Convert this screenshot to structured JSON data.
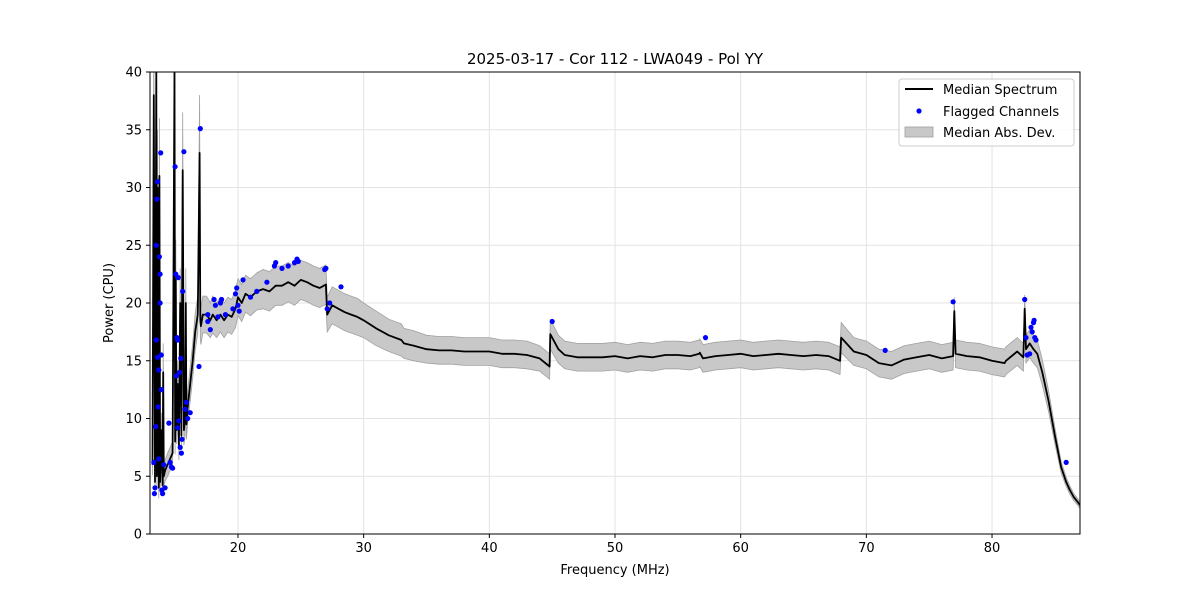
{
  "chart_data": {
    "type": "line",
    "title": "2025-03-17 - Cor 112 - LWA049 - Pol YY",
    "xlabel": "Frequency (MHz)",
    "ylabel": "Power (CPU)",
    "xlim": [
      13,
      87
    ],
    "ylim": [
      0,
      40
    ],
    "xticks": [
      20,
      30,
      40,
      50,
      60,
      70,
      80
    ],
    "yticks": [
      0,
      5,
      10,
      15,
      20,
      25,
      30,
      35,
      40
    ],
    "grid": true,
    "legend_position": "top-right",
    "colors": {
      "median": "#000000",
      "flagged": "#0000ff",
      "mad": "#c8c8c8",
      "mad_edge": "#a0a0a0"
    },
    "legend": [
      {
        "label": "Median Spectrum",
        "kind": "line"
      },
      {
        "label": "Flagged Channels",
        "kind": "point"
      },
      {
        "label": "Median Abs. Dev.",
        "kind": "band"
      }
    ],
    "series": [
      {
        "name": "Median Spectrum",
        "x": [
          13.2,
          13.3,
          13.4,
          13.5,
          13.55,
          13.6,
          13.7,
          13.75,
          13.8,
          13.9,
          14.0,
          14.05,
          14.1,
          14.2,
          14.4,
          14.6,
          14.8,
          14.95,
          15.0,
          15.05,
          15.1,
          15.2,
          15.3,
          15.4,
          15.5,
          15.6,
          15.7,
          15.8,
          15.85,
          15.9,
          16.0,
          16.2,
          16.4,
          16.6,
          16.8,
          16.95,
          17.0,
          17.05,
          17.2,
          17.5,
          17.8,
          18.0,
          18.3,
          18.6,
          18.9,
          19.2,
          19.5,
          19.8,
          20.0,
          20.3,
          20.6,
          21.0,
          21.5,
          22.0,
          22.5,
          23.0,
          23.5,
          24.0,
          24.5,
          25.0,
          25.5,
          26.0,
          26.5,
          27.0,
          27.1,
          27.5,
          28.0,
          28.5,
          29.0,
          29.5,
          30.0,
          31.0,
          32.0,
          33.0,
          33.2,
          34.0,
          35.0,
          36.0,
          37.0,
          38.0,
          39.0,
          40.0,
          41.0,
          42.0,
          43.0,
          44.0,
          44.8,
          44.85,
          45.5,
          46.0,
          47.0,
          48.0,
          49.0,
          50.0,
          51.0,
          52.0,
          53.0,
          54.0,
          55.0,
          56.0,
          56.7,
          56.75,
          57.0,
          58.0,
          59.0,
          60.0,
          61.0,
          62.0,
          63.0,
          64.0,
          65.0,
          66.0,
          67.0,
          67.9,
          68.0,
          69.0,
          70.0,
          71.0,
          72.0,
          73.0,
          74.0,
          75.0,
          76.0,
          76.9,
          77.0,
          77.1,
          78.0,
          79.0,
          80.0,
          81.0,
          81.1,
          82.0,
          82.5,
          82.6,
          82.7,
          83.0,
          83.3,
          83.6,
          84.0,
          84.5,
          85.0,
          85.5,
          85.9,
          86.2,
          86.5,
          86.8,
          87.0
        ],
        "y": [
          6.0,
          38.0,
          4.5,
          40.0,
          5.0,
          30.0,
          4.0,
          31.0,
          4.5,
          9.0,
          4.2,
          14.0,
          5.0,
          5.5,
          6.0,
          6.5,
          7.0,
          40.0,
          8.0,
          22.0,
          9.0,
          13.0,
          7.5,
          20.0,
          8.5,
          31.5,
          9.0,
          10.0,
          20.0,
          9.5,
          11.0,
          13.0,
          15.0,
          17.5,
          19.0,
          33.0,
          18.5,
          18.0,
          19.0,
          19.0,
          18.5,
          19.0,
          18.5,
          19.0,
          18.5,
          19.0,
          18.8,
          19.5,
          20.5,
          20.0,
          20.8,
          20.5,
          21.0,
          21.2,
          21.0,
          21.5,
          21.5,
          21.8,
          21.5,
          22.0,
          21.8,
          21.5,
          21.3,
          21.6,
          19.0,
          19.8,
          19.5,
          19.2,
          19.0,
          18.8,
          18.5,
          17.8,
          17.2,
          16.8,
          16.5,
          16.3,
          16.0,
          15.9,
          15.9,
          15.8,
          15.8,
          15.8,
          15.6,
          15.6,
          15.5,
          15.2,
          14.5,
          17.3,
          16.0,
          15.5,
          15.3,
          15.3,
          15.3,
          15.4,
          15.2,
          15.4,
          15.3,
          15.5,
          15.5,
          15.4,
          15.6,
          15.7,
          15.2,
          15.4,
          15.5,
          15.6,
          15.4,
          15.5,
          15.6,
          15.5,
          15.4,
          15.5,
          15.4,
          15.0,
          17.0,
          15.8,
          15.5,
          14.8,
          14.6,
          15.1,
          15.3,
          15.5,
          15.2,
          15.4,
          19.3,
          15.6,
          15.4,
          15.3,
          15.0,
          14.8,
          15.0,
          15.8,
          15.3,
          19.5,
          16.0,
          16.5,
          16.0,
          15.6,
          14.0,
          11.5,
          8.5,
          5.8,
          4.5,
          3.8,
          3.2,
          2.8,
          2.5
        ]
      }
    ],
    "band": {
      "name": "Median Abs. Dev.",
      "half_width": [
        0.9,
        6.0,
        0.9,
        7.0,
        1.0,
        5.0,
        0.9,
        5.0,
        0.9,
        1.5,
        0.9,
        2.5,
        0.9,
        0.9,
        1.0,
        1.0,
        1.0,
        7.0,
        1.1,
        3.5,
        1.2,
        2.0,
        1.1,
        3.0,
        1.2,
        5.0,
        1.3,
        1.4,
        3.0,
        1.3,
        1.4,
        1.5,
        1.5,
        1.6,
        1.6,
        5.0,
        1.6,
        1.6,
        1.6,
        1.6,
        1.5,
        1.6,
        1.5,
        1.5,
        1.5,
        1.5,
        1.5,
        1.6,
        1.6,
        1.6,
        1.6,
        1.6,
        1.6,
        1.7,
        1.7,
        1.7,
        1.7,
        1.7,
        1.7,
        1.7,
        1.7,
        1.7,
        1.7,
        1.7,
        1.5,
        1.6,
        1.6,
        1.6,
        1.6,
        1.6,
        1.5,
        1.5,
        1.4,
        1.4,
        1.3,
        1.3,
        1.2,
        1.2,
        1.2,
        1.2,
        1.2,
        1.2,
        1.2,
        1.2,
        1.2,
        1.1,
        1.1,
        1.3,
        1.2,
        1.2,
        1.2,
        1.2,
        1.2,
        1.2,
        1.2,
        1.2,
        1.2,
        1.2,
        1.2,
        1.2,
        1.2,
        1.2,
        1.2,
        1.2,
        1.2,
        1.2,
        1.2,
        1.2,
        1.2,
        1.2,
        1.2,
        1.2,
        1.2,
        1.2,
        1.3,
        1.2,
        1.2,
        1.2,
        1.2,
        1.2,
        1.2,
        1.2,
        1.2,
        1.2,
        1.2,
        1.2,
        1.2,
        1.2,
        1.2,
        1.2,
        1.2,
        1.2,
        1.2,
        1.2,
        1.2,
        1.2,
        1.2,
        1.2,
        1.1,
        0.9,
        0.7,
        0.5,
        0.4,
        0.35,
        0.3,
        0.3,
        0.3
      ]
    },
    "flagged": [
      {
        "x": 13.3,
        "y": 6.2
      },
      {
        "x": 13.35,
        "y": 3.5
      },
      {
        "x": 13.4,
        "y": 4.0
      },
      {
        "x": 13.45,
        "y": 9.3
      },
      {
        "x": 13.5,
        "y": 16.8
      },
      {
        "x": 13.5,
        "y": 25.0
      },
      {
        "x": 13.55,
        "y": 29.0
      },
      {
        "x": 13.6,
        "y": 30.5
      },
      {
        "x": 13.6,
        "y": 15.3
      },
      {
        "x": 13.65,
        "y": 11.0
      },
      {
        "x": 13.7,
        "y": 14.2
      },
      {
        "x": 13.7,
        "y": 6.5
      },
      {
        "x": 13.75,
        "y": 24.0
      },
      {
        "x": 13.8,
        "y": 22.5
      },
      {
        "x": 13.8,
        "y": 20.0
      },
      {
        "x": 13.85,
        "y": 33.0
      },
      {
        "x": 13.9,
        "y": 15.5
      },
      {
        "x": 13.9,
        "y": 12.5
      },
      {
        "x": 13.95,
        "y": 3.8
      },
      {
        "x": 14.0,
        "y": 3.5
      },
      {
        "x": 14.1,
        "y": 6.0
      },
      {
        "x": 14.2,
        "y": 4.0
      },
      {
        "x": 14.5,
        "y": 9.6
      },
      {
        "x": 14.6,
        "y": 6.2
      },
      {
        "x": 14.7,
        "y": 5.8
      },
      {
        "x": 14.8,
        "y": 5.7
      },
      {
        "x": 15.0,
        "y": 31.8
      },
      {
        "x": 15.05,
        "y": 22.5
      },
      {
        "x": 15.1,
        "y": 13.7
      },
      {
        "x": 15.15,
        "y": 17.0
      },
      {
        "x": 15.2,
        "y": 16.8
      },
      {
        "x": 15.2,
        "y": 9.2
      },
      {
        "x": 15.25,
        "y": 22.2
      },
      {
        "x": 15.3,
        "y": 9.8
      },
      {
        "x": 15.35,
        "y": 14.0
      },
      {
        "x": 15.4,
        "y": 7.5
      },
      {
        "x": 15.45,
        "y": 15.2
      },
      {
        "x": 15.5,
        "y": 7.0
      },
      {
        "x": 15.55,
        "y": 8.2
      },
      {
        "x": 15.6,
        "y": 21.0
      },
      {
        "x": 15.7,
        "y": 33.1
      },
      {
        "x": 15.8,
        "y": 10.8
      },
      {
        "x": 15.9,
        "y": 11.4
      },
      {
        "x": 16.0,
        "y": 10.0
      },
      {
        "x": 16.2,
        "y": 10.5
      },
      {
        "x": 16.9,
        "y": 14.5
      },
      {
        "x": 17.0,
        "y": 35.1
      },
      {
        "x": 17.6,
        "y": 19.0
      },
      {
        "x": 17.6,
        "y": 18.4
      },
      {
        "x": 17.8,
        "y": 17.7
      },
      {
        "x": 18.1,
        "y": 20.3
      },
      {
        "x": 18.2,
        "y": 19.8
      },
      {
        "x": 18.4,
        "y": 18.8
      },
      {
        "x": 18.6,
        "y": 20.0
      },
      {
        "x": 18.7,
        "y": 20.3
      },
      {
        "x": 19.0,
        "y": 19.0
      },
      {
        "x": 19.6,
        "y": 19.5
      },
      {
        "x": 19.8,
        "y": 20.8
      },
      {
        "x": 19.9,
        "y": 21.3
      },
      {
        "x": 20.0,
        "y": 19.8
      },
      {
        "x": 20.1,
        "y": 19.3
      },
      {
        "x": 20.4,
        "y": 22.0
      },
      {
        "x": 21.0,
        "y": 20.5
      },
      {
        "x": 21.5,
        "y": 21.0
      },
      {
        "x": 22.3,
        "y": 21.8
      },
      {
        "x": 22.9,
        "y": 23.2
      },
      {
        "x": 23.0,
        "y": 23.5
      },
      {
        "x": 23.5,
        "y": 23.0
      },
      {
        "x": 24.0,
        "y": 23.2
      },
      {
        "x": 24.5,
        "y": 23.5
      },
      {
        "x": 24.7,
        "y": 23.8
      },
      {
        "x": 24.8,
        "y": 23.6
      },
      {
        "x": 26.9,
        "y": 22.9
      },
      {
        "x": 27.0,
        "y": 23.0
      },
      {
        "x": 27.1,
        "y": 19.5
      },
      {
        "x": 27.3,
        "y": 20.0
      },
      {
        "x": 28.2,
        "y": 21.4
      },
      {
        "x": 45.0,
        "y": 18.4
      },
      {
        "x": 57.2,
        "y": 17.0
      },
      {
        "x": 71.5,
        "y": 15.9
      },
      {
        "x": 76.9,
        "y": 20.1
      },
      {
        "x": 82.6,
        "y": 20.3
      },
      {
        "x": 82.7,
        "y": 17.0
      },
      {
        "x": 82.8,
        "y": 15.5
      },
      {
        "x": 83.0,
        "y": 15.6
      },
      {
        "x": 83.1,
        "y": 17.9
      },
      {
        "x": 83.2,
        "y": 17.5
      },
      {
        "x": 83.3,
        "y": 18.3
      },
      {
        "x": 83.35,
        "y": 18.5
      },
      {
        "x": 83.4,
        "y": 17.0
      },
      {
        "x": 83.5,
        "y": 16.8
      },
      {
        "x": 85.9,
        "y": 6.2
      }
    ]
  }
}
